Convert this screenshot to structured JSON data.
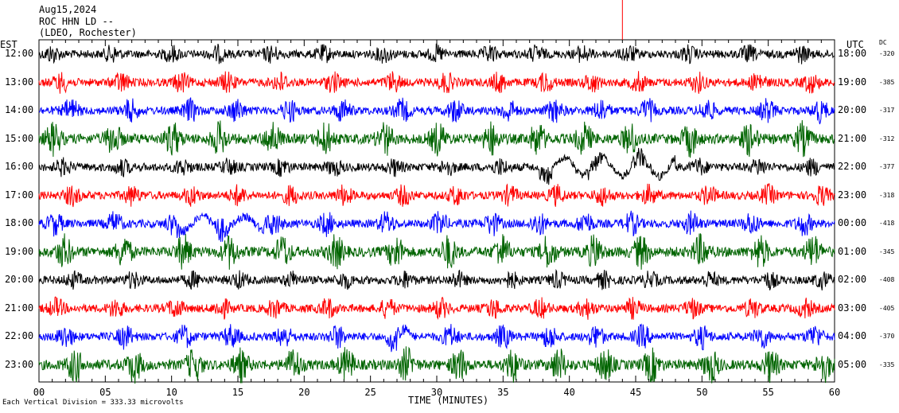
{
  "header": {
    "date": "Aug15,2024",
    "station": "ROC HHN LD --",
    "network": "(LDEO, Rochester)"
  },
  "left_unit": "EST",
  "right_unit": "UTC",
  "dc_label": "DC",
  "footer": "Each Vertical Division =  333.33 microvolts",
  "colors": {
    "black": "#000000",
    "red": "#ff0000",
    "blue": "#0000ff",
    "green": "#006400",
    "marker": "#ff0000"
  },
  "chart_data": {
    "type": "line",
    "title": "",
    "xlabel": "TIME (MINUTES)",
    "xlim": [
      0,
      60
    ],
    "xticks": [
      "00",
      "05",
      "10",
      "15",
      "20",
      "25",
      "30",
      "35",
      "40",
      "45",
      "50",
      "55",
      "60"
    ],
    "marker_minute": 44,
    "rows": [
      {
        "est": "12:00",
        "utc": "18:00",
        "dc": "-320",
        "color": "black"
      },
      {
        "est": "13:00",
        "utc": "19:00",
        "dc": "-385",
        "color": "red"
      },
      {
        "est": "14:00",
        "utc": "20:00",
        "dc": "-317",
        "color": "blue"
      },
      {
        "est": "15:00",
        "utc": "21:00",
        "dc": "-312",
        "color": "green"
      },
      {
        "est": "16:00",
        "utc": "22:00",
        "dc": "-377",
        "color": "black"
      },
      {
        "est": "17:00",
        "utc": "23:00",
        "dc": "-318",
        "color": "red"
      },
      {
        "est": "18:00",
        "utc": "00:00",
        "dc": "-418",
        "color": "blue"
      },
      {
        "est": "19:00",
        "utc": "01:00",
        "dc": "-345",
        "color": "green"
      },
      {
        "est": "20:00",
        "utc": "02:00",
        "dc": "-408",
        "color": "black"
      },
      {
        "est": "21:00",
        "utc": "03:00",
        "dc": "-405",
        "color": "red"
      },
      {
        "est": "22:00",
        "utc": "04:00",
        "dc": "-370",
        "color": "blue"
      },
      {
        "est": "23:00",
        "utc": "05:00",
        "dc": "-335",
        "color": "green"
      }
    ]
  }
}
